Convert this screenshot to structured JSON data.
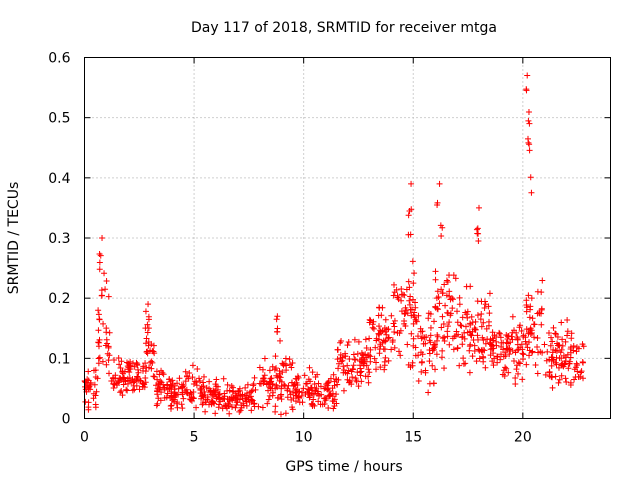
{
  "chart_data": {
    "type": "scatter",
    "title": "Day 117 of 2018, SRMTID for receiver mtga",
    "xlabel": "GPS time / hours",
    "ylabel": "SRMTID / TECUs",
    "xlim": [
      0,
      24
    ],
    "ylim": [
      0,
      0.6
    ],
    "x_ticks": [
      0,
      5,
      10,
      15,
      20
    ],
    "x_tick_labels": [
      "0",
      "5",
      "10",
      "15",
      "20"
    ],
    "y_ticks": [
      0,
      0.1,
      0.2,
      0.3,
      0.4,
      0.5,
      0.6
    ],
    "y_tick_labels": [
      "0",
      "0.1",
      "0.2",
      "0.3",
      "0.4",
      "0.5",
      "0.6"
    ],
    "grid": true,
    "marker": "plus",
    "color": "#ff0000",
    "series": [
      {
        "name": "SRMTID",
        "profile": [
          {
            "x_range": [
              0.0,
              0.6
            ],
            "median": 0.05,
            "spread": 0.05
          },
          {
            "x_range": [
              0.6,
              1.2
            ],
            "median": 0.14,
            "spread": 0.1
          },
          {
            "x_range": [
              1.2,
              2.8
            ],
            "median": 0.07,
            "spread": 0.04
          },
          {
            "x_range": [
              2.8,
              3.2
            ],
            "median": 0.11,
            "spread": 0.06
          },
          {
            "x_range": [
              3.2,
              5.5
            ],
            "median": 0.05,
            "spread": 0.04
          },
          {
            "x_range": [
              5.5,
              8.0
            ],
            "median": 0.035,
            "spread": 0.035
          },
          {
            "x_range": [
              8.0,
              9.5
            ],
            "median": 0.06,
            "spread": 0.06
          },
          {
            "x_range": [
              9.5,
              11.5
            ],
            "median": 0.045,
            "spread": 0.04
          },
          {
            "x_range": [
              11.5,
              13.0
            ],
            "median": 0.09,
            "spread": 0.06
          },
          {
            "x_range": [
              13.0,
              14.0
            ],
            "median": 0.13,
            "spread": 0.08
          },
          {
            "x_range": [
              14.0,
              15.2
            ],
            "median": 0.17,
            "spread": 0.1
          },
          {
            "x_range": [
              15.2,
              16.0
            ],
            "median": 0.12,
            "spread": 0.09
          },
          {
            "x_range": [
              16.0,
              17.0
            ],
            "median": 0.17,
            "spread": 0.1
          },
          {
            "x_range": [
              17.0,
              18.5
            ],
            "median": 0.15,
            "spread": 0.09
          },
          {
            "x_range": [
              18.5,
              19.5
            ],
            "median": 0.11,
            "spread": 0.05
          },
          {
            "x_range": [
              19.5,
              20.1
            ],
            "median": 0.12,
            "spread": 0.07
          },
          {
            "x_range": [
              20.1,
              21.0
            ],
            "median": 0.15,
            "spread": 0.1
          },
          {
            "x_range": [
              21.0,
              22.8
            ],
            "median": 0.1,
            "spread": 0.07
          }
        ],
        "peaks": [
          {
            "x": 0.8,
            "y": 0.3
          },
          {
            "x": 2.9,
            "y": 0.19
          },
          {
            "x": 8.8,
            "y": 0.17
          },
          {
            "x": 14.9,
            "y": 0.39
          },
          {
            "x": 16.2,
            "y": 0.39
          },
          {
            "x": 18.0,
            "y": 0.35
          },
          {
            "x": 20.2,
            "y": 0.57
          },
          {
            "x": 20.3,
            "y": 0.49
          }
        ]
      }
    ]
  }
}
